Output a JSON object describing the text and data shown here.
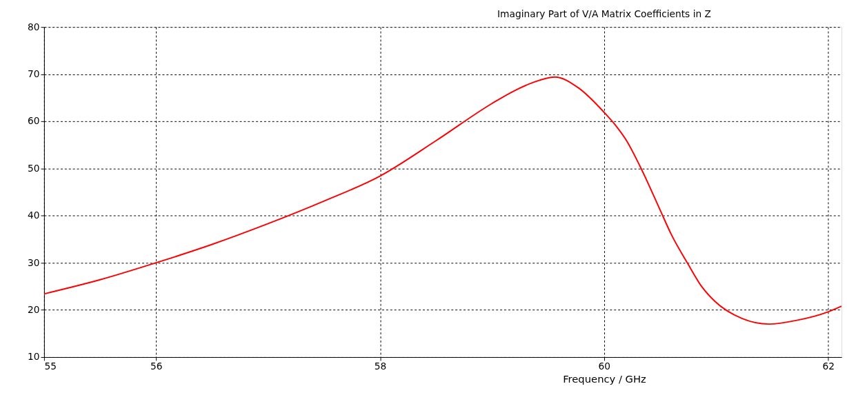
{
  "chart_data": {
    "type": "line",
    "title": "Imaginary Part of V/A Matrix Coefficients in Z",
    "xlabel": "Frequency / GHz",
    "series": [
      {
        "color": "#ff0000",
        "x": [
          55,
          55.5,
          56,
          56.5,
          57,
          57.5,
          58,
          58.5,
          59,
          59.2,
          59.35,
          59.56,
          59.77,
          60,
          60.1,
          60.2,
          60.32,
          60.5,
          60.6,
          60.75,
          60.87,
          60.99,
          61.23,
          61.47,
          61.72,
          62,
          62.12
        ],
        "values": [
          23.4,
          26.4,
          30.0,
          33.9,
          38.3,
          43.1,
          48.4,
          55.9,
          63.8,
          66.5,
          68.1,
          69.4,
          67.1,
          61.9,
          59.2,
          55.9,
          50.5,
          41.2,
          36.0,
          29.7,
          25.0,
          21.8,
          18.2,
          17.0,
          17.8,
          19.6,
          20.8
        ]
      }
    ],
    "xlim": [
      55,
      62.12
    ],
    "xticks": [
      55,
      56,
      58,
      60,
      62
    ],
    "ylim": [
      10,
      80
    ],
    "yticks": [
      10,
      20,
      30,
      40,
      50,
      60,
      70,
      80
    ],
    "grid": true,
    "line_style": "solid",
    "marker": "none"
  }
}
